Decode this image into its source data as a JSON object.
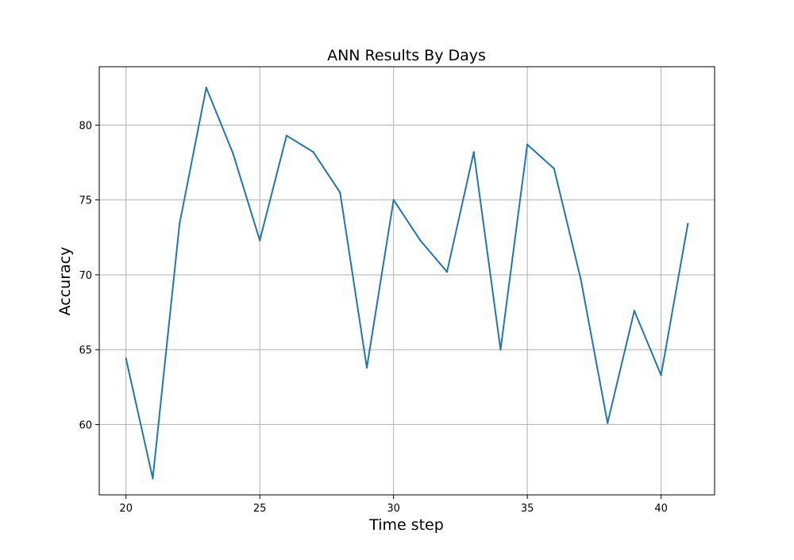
{
  "chart_data": {
    "type": "line",
    "title": "ANN Results By Days",
    "xlabel": "Time step",
    "ylabel": "Accuracy",
    "xlim": [
      19,
      42
    ],
    "ylim": [
      55.3,
      83.9
    ],
    "xticks": [
      20,
      25,
      30,
      35,
      40
    ],
    "yticks": [
      60,
      65,
      70,
      75,
      80
    ],
    "grid": true,
    "series": [
      {
        "color": "#1f77b4",
        "x": [
          20,
          21,
          22,
          23,
          24,
          25,
          26,
          27,
          28,
          29,
          30,
          31,
          32,
          33,
          34,
          35,
          36,
          37,
          38,
          39,
          40,
          41
        ],
        "y": [
          64.4,
          56.4,
          73.4,
          82.5,
          78.1,
          72.3,
          79.3,
          78.2,
          75.5,
          63.8,
          75.0,
          72.3,
          70.2,
          78.2,
          65.0,
          78.7,
          77.1,
          69.7,
          60.1,
          67.6,
          63.3,
          73.4
        ]
      }
    ]
  }
}
